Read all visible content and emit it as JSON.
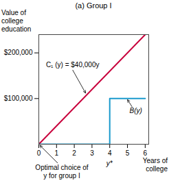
{
  "chart_data": {
    "type": "line",
    "title": "(a) Group I",
    "xlabel": "Years of\ncollege",
    "ylabel": "Value of\ncollege\neducation",
    "series": [
      {
        "name": "C₁ (y) = $40,000y",
        "color": "#c8003c",
        "x": [
          0,
          6
        ],
        "values": [
          0,
          240000
        ]
      },
      {
        "name": "B(y)",
        "color": "#1a9acd",
        "x": [
          0,
          4,
          4,
          6
        ],
        "values": [
          0,
          0,
          100000,
          100000
        ]
      }
    ],
    "xlim": [
      0,
      6.2
    ],
    "ylim": [
      0,
      240000
    ],
    "xticks": [
      0,
      1,
      2,
      3,
      4,
      5,
      6
    ],
    "yticks": [
      {
        "value": 100000,
        "label": "$100,000"
      },
      {
        "value": 200000,
        "label": "$200,000"
      }
    ],
    "grid": false,
    "annotations": [
      {
        "text": "y*",
        "x": 4
      },
      {
        "text": "Optimal choice of\ny for group I",
        "x": 0,
        "y": 0
      }
    ]
  }
}
